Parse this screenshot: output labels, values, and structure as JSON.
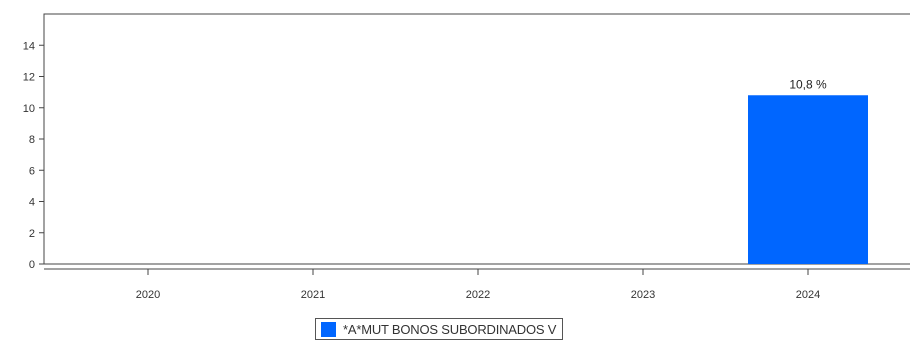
{
  "chart_data": {
    "type": "bar",
    "title": "",
    "xlabel": "",
    "ylabel": "",
    "categories": [
      "2020",
      "2021",
      "2022",
      "2023",
      "2024"
    ],
    "series": [
      {
        "name": "*A*MUT BONOS SUBORDINADOS V",
        "values": [
          null,
          null,
          null,
          null,
          10.8
        ],
        "data_labels": [
          null,
          null,
          null,
          null,
          "10,8 %"
        ],
        "color": "#0066ff"
      }
    ],
    "ylim": [
      0,
      16
    ],
    "yticks": [
      "0",
      "2",
      "4",
      "6",
      "8",
      "10",
      "12",
      "14"
    ],
    "grid": false,
    "legend_position": "bottom"
  },
  "legend": {
    "label": "*A*MUT BONOS SUBORDINADOS V",
    "color": "#0066ff"
  }
}
